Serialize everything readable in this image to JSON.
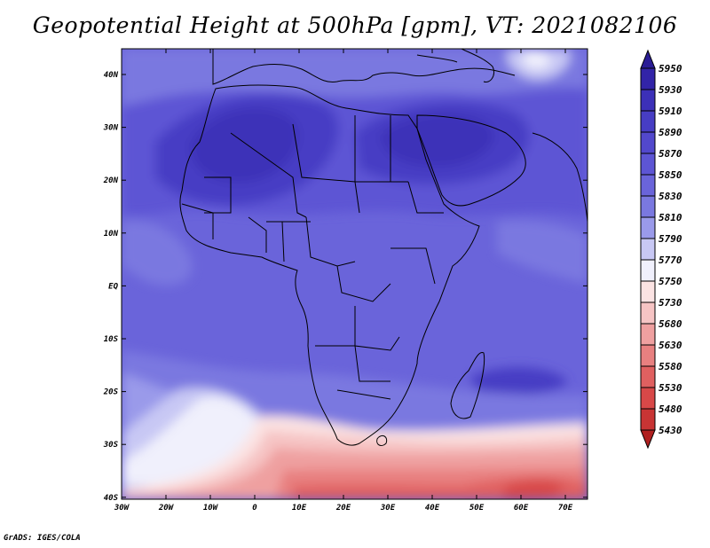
{
  "title": "Geopotential Height at 500hPa [gpm], VT: 2021082106",
  "footer": "GrADS: IGES/COLA",
  "lat_labels": [
    "40N",
    "30N",
    "20N",
    "10N",
    "EQ",
    "10S",
    "20S",
    "30S",
    "40S"
  ],
  "lon_labels": [
    "30W",
    "20W",
    "10W",
    "0",
    "10E",
    "20E",
    "30E",
    "40E",
    "50E",
    "60E",
    "70E"
  ],
  "colorbar": {
    "levels": [
      "5950",
      "5930",
      "5910",
      "5890",
      "5870",
      "5850",
      "5830",
      "5810",
      "5790",
      "5770",
      "5750",
      "5730",
      "5680",
      "5630",
      "5580",
      "5530",
      "5480",
      "5430"
    ],
    "colors": [
      "#2a1c95",
      "#3224a8",
      "#3c30b8",
      "#473dc4",
      "#5248cc",
      "#5d55d4",
      "#6a64da",
      "#7a78e0",
      "#9a9aea",
      "#c8c8f4",
      "#f0f0fc",
      "#fbe3e3",
      "#f6c4c4",
      "#efa0a0",
      "#e88080",
      "#e06060",
      "#d84848",
      "#c83434",
      "#b02020"
    ]
  },
  "map": {
    "field": "geopotential height",
    "level": "500hPa",
    "units": "gpm",
    "valid_time": "2021082106",
    "lon_range": [
      -30,
      75
    ],
    "lat_range": [
      -40,
      45
    ]
  }
}
